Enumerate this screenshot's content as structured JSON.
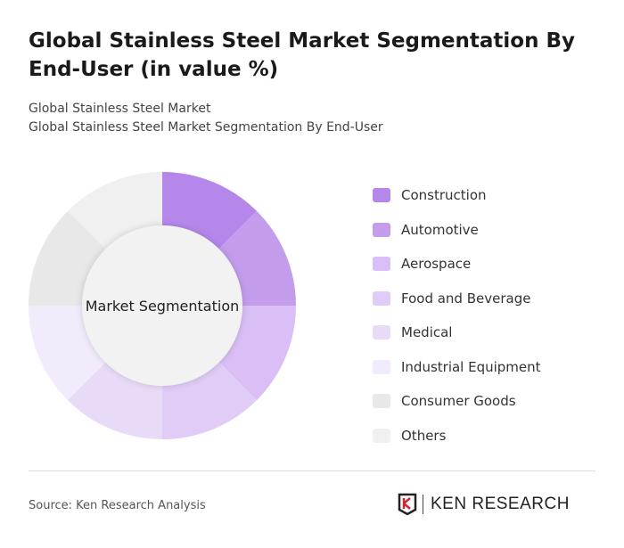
{
  "header": {
    "title": "Global Stainless Steel Market Segmentation By End-User (in value %)",
    "subtitle1": "Global Stainless Steel Market",
    "subtitle2": "Global Stainless Steel Market Segmentation By End-User"
  },
  "chart_data": {
    "type": "pie",
    "donut": true,
    "center_label": "Market Segmentation",
    "categories": [
      "Construction",
      "Automotive",
      "Aerospace",
      "Food and Beverage",
      "Medical",
      "Industrial Equipment",
      "Consumer Goods",
      "Others"
    ],
    "values": [
      12.5,
      12.5,
      12.5,
      12.5,
      12.5,
      12.5,
      12.5,
      12.5
    ],
    "colors": [
      "#b587ea",
      "#c39dec",
      "#d9bff5",
      "#e0ccf6",
      "#e8dbf8",
      "#f1ebfb",
      "#e8e8e8",
      "#f0f0f0"
    ],
    "legend": "right"
  },
  "footer": {
    "source": "Source: Ken Research Analysis",
    "logo_text": "KEN RESEARCH"
  }
}
